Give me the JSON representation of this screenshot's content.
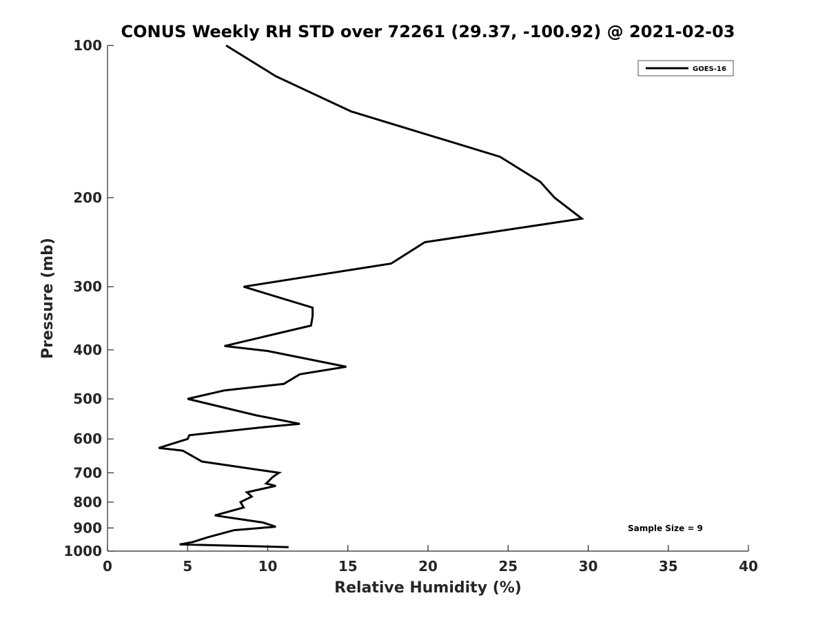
{
  "chart_data": {
    "type": "line",
    "title": "CONUS Weekly RH STD over 72261 (29.37, -100.92) @ 2021-02-03",
    "xlabel": "Relative Humidity (%)",
    "ylabel": "Pressure (mb)",
    "xlim": [
      0,
      40
    ],
    "ylim": [
      100,
      1000
    ],
    "yscale": "log",
    "y_reversed": true,
    "x_ticks": [
      0,
      5,
      10,
      15,
      20,
      25,
      30,
      35,
      40
    ],
    "y_ticks": [
      100,
      200,
      300,
      400,
      500,
      600,
      700,
      800,
      900,
      1000
    ],
    "grid": false,
    "legend_position": "top-right",
    "annotation": "Sample Size = 9",
    "series": [
      {
        "name": "GOES-16",
        "color": "#000000",
        "x": [
          7.4,
          10.5,
          15.2,
          24.5,
          27.0,
          27.9,
          29.6,
          19.8,
          17.7,
          8.5,
          12.8,
          12.8,
          12.7,
          7.3,
          10.0,
          14.9,
          12.0,
          11.0,
          7.3,
          5.0,
          9.3,
          12.0,
          9.9,
          5.1,
          5.0,
          3.2,
          4.7,
          5.9,
          10.7,
          10.6,
          10.3,
          9.9,
          10.5,
          8.7,
          9.0,
          8.3,
          8.5,
          6.7,
          9.7,
          10.5,
          7.9,
          6.2,
          5.3,
          4.5,
          11.3
        ],
        "y": [
          100,
          115,
          135,
          166,
          186,
          200,
          220,
          245,
          270,
          300,
          330,
          343,
          358,
          393,
          402,
          432,
          447,
          467,
          481,
          500,
          539,
          560,
          568,
          590,
          600,
          625,
          633,
          665,
          700,
          703,
          714,
          735,
          743,
          765,
          780,
          800,
          820,
          850,
          878,
          895,
          909,
          940,
          960,
          970,
          982
        ]
      }
    ]
  }
}
